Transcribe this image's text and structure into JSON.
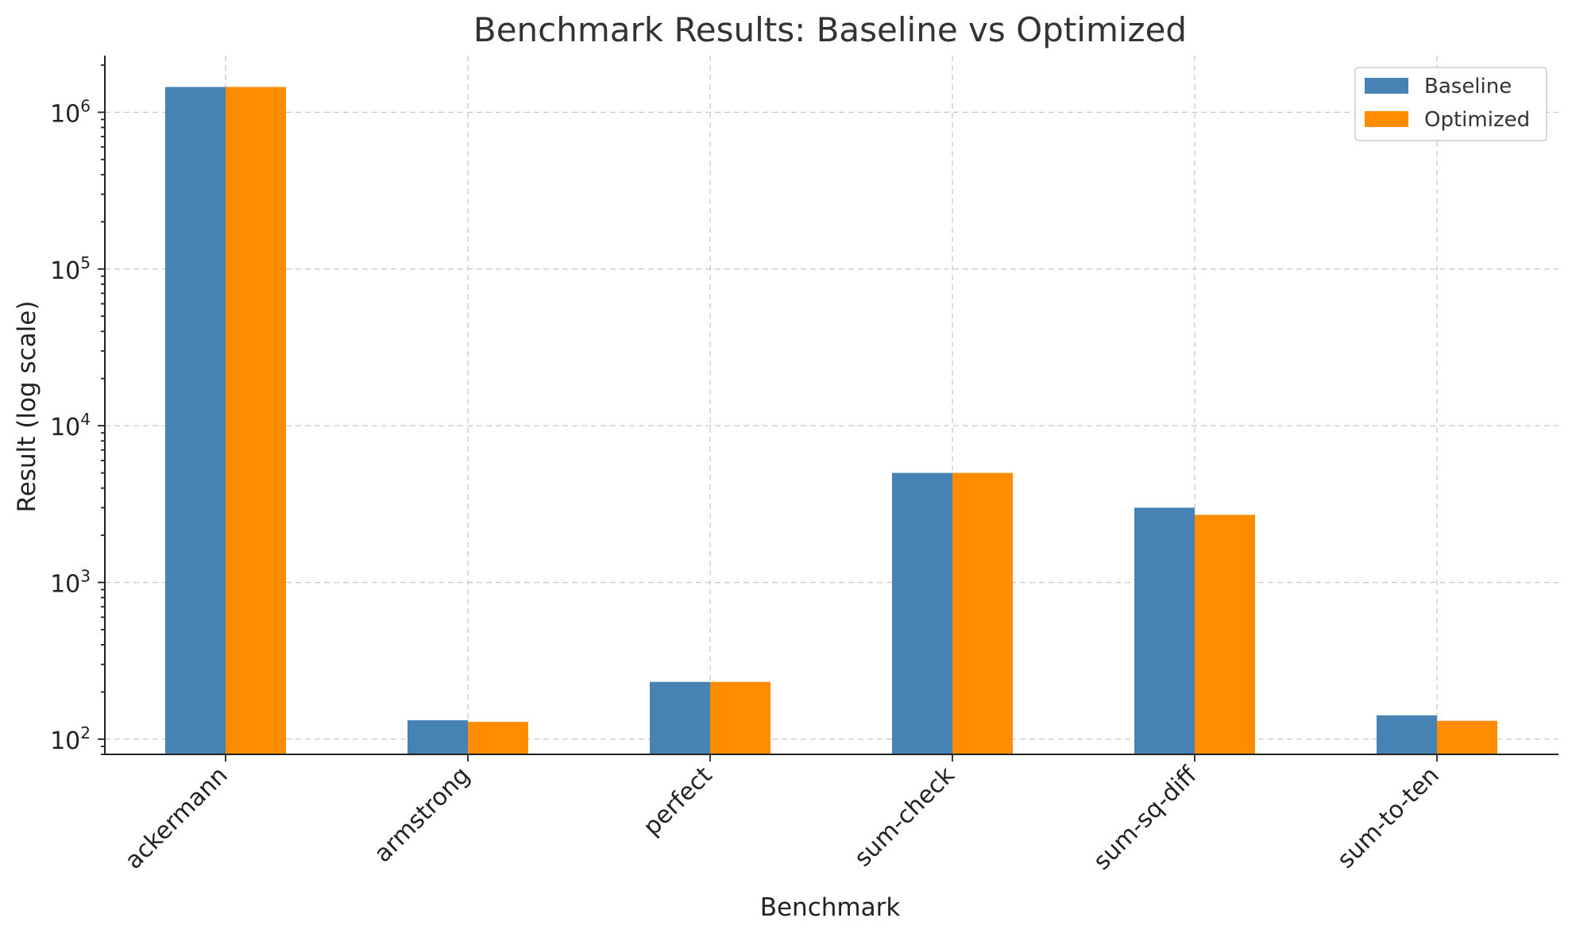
{
  "chart_data": {
    "type": "bar",
    "title": "Benchmark Results: Baseline vs Optimized",
    "xlabel": "Benchmark",
    "ylabel": "Result (log scale)",
    "yscale": "log",
    "ylim": [
      80,
      2300000
    ],
    "yticks": [
      {
        "value": 100,
        "base": "10",
        "exp": "2"
      },
      {
        "value": 1000,
        "base": "10",
        "exp": "3"
      },
      {
        "value": 10000,
        "base": "10",
        "exp": "4"
      },
      {
        "value": 100000,
        "base": "10",
        "exp": "5"
      },
      {
        "value": 1000000,
        "base": "10",
        "exp": "6"
      }
    ],
    "grid": true,
    "legend_position": "top-right",
    "categories": [
      "ackermann",
      "armstrong",
      "perfect",
      "sum-check",
      "sum-sq-diff",
      "sum-to-ten"
    ],
    "series": [
      {
        "name": "Baseline",
        "color": "#4682b4",
        "values": [
          1450000,
          132,
          232,
          5000,
          3000,
          142
        ]
      },
      {
        "name": "Optimized",
        "color": "#ff8c00",
        "values": [
          1450000,
          129,
          232,
          5000,
          2700,
          131
        ]
      }
    ]
  }
}
